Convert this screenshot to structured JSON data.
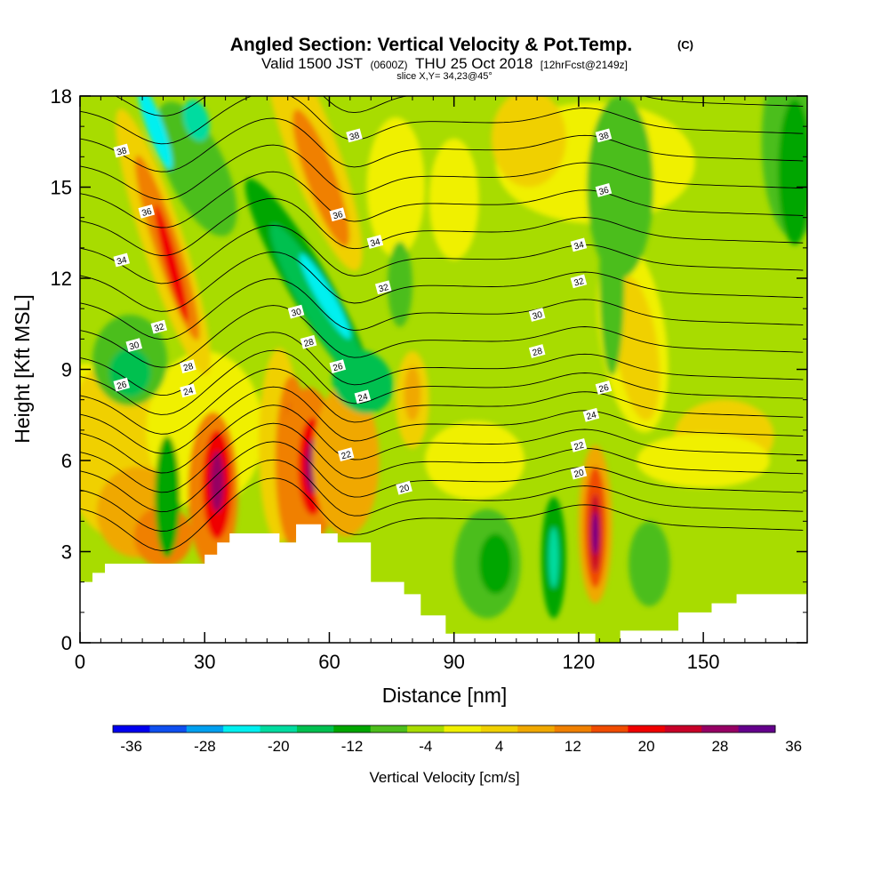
{
  "title": "Angled Section: Vertical Velocity & Pot.Temp.",
  "title_mark": "(C)",
  "subtitle_main": "Valid 1500 JST",
  "subtitle_z": "(0600Z)",
  "subtitle_date": "THU 25 Oct 2018",
  "subtitle_fcst": "[12hrFcst@2149z]",
  "slice": "slice X,Y= 34,23@45°",
  "chart_data": {
    "type": "heatmap",
    "xlabel": "Distance [nm]",
    "ylabel": "Height [Kft MSL]",
    "xlim": [
      0,
      175
    ],
    "ylim": [
      0,
      18
    ],
    "x_ticks": [
      "0",
      "30",
      "60",
      "90",
      "120",
      "150"
    ],
    "y_ticks": [
      "0",
      "3",
      "6",
      "9",
      "12",
      "15",
      "18"
    ],
    "colorbar": {
      "label": "Vertical Velocity [cm/s]",
      "tick_labels": [
        "-36",
        "-28",
        "-20",
        "-12",
        "-4",
        "4",
        "12",
        "20",
        "28",
        "36"
      ],
      "colors": [
        "#0000f0",
        "#0f4ff0",
        "#00a0f0",
        "#00f0f0",
        "#00dca0",
        "#00c050",
        "#00a600",
        "#4cbe1c",
        "#a8dc00",
        "#f0f000",
        "#f0d000",
        "#f0a800",
        "#f08000",
        "#f04c00",
        "#f00000",
        "#c80028",
        "#960064",
        "#64008c"
      ]
    },
    "contour_labels": [
      {
        "x": 10,
        "y": 16.2,
        "v": "38"
      },
      {
        "x": 16,
        "y": 14.2,
        "v": "36"
      },
      {
        "x": 10,
        "y": 12.6,
        "v": "34"
      },
      {
        "x": 19,
        "y": 10.4,
        "v": "32"
      },
      {
        "x": 13,
        "y": 9.8,
        "v": "30"
      },
      {
        "x": 26,
        "y": 9.1,
        "v": "28"
      },
      {
        "x": 10,
        "y": 8.5,
        "v": "26"
      },
      {
        "x": 26,
        "y": 8.3,
        "v": "24"
      },
      {
        "x": 66,
        "y": 16.7,
        "v": "38"
      },
      {
        "x": 62,
        "y": 14.1,
        "v": "36"
      },
      {
        "x": 71,
        "y": 13.2,
        "v": "34"
      },
      {
        "x": 73,
        "y": 11.7,
        "v": "32"
      },
      {
        "x": 52,
        "y": 10.9,
        "v": "30"
      },
      {
        "x": 55,
        "y": 9.9,
        "v": "28"
      },
      {
        "x": 62,
        "y": 9.1,
        "v": "26"
      },
      {
        "x": 68,
        "y": 8.1,
        "v": "24"
      },
      {
        "x": 64,
        "y": 6.2,
        "v": "22"
      },
      {
        "x": 78,
        "y": 5.1,
        "v": "20"
      },
      {
        "x": 126,
        "y": 16.7,
        "v": "38"
      },
      {
        "x": 126,
        "y": 14.9,
        "v": "36"
      },
      {
        "x": 120,
        "y": 13.1,
        "v": "34"
      },
      {
        "x": 120,
        "y": 11.9,
        "v": "32"
      },
      {
        "x": 110,
        "y": 10.8,
        "v": "30"
      },
      {
        "x": 110,
        "y": 9.6,
        "v": "28"
      },
      {
        "x": 126,
        "y": 8.4,
        "v": "26"
      },
      {
        "x": 123,
        "y": 7.5,
        "v": "24"
      },
      {
        "x": 120,
        "y": 6.5,
        "v": "22"
      },
      {
        "x": 120,
        "y": 5.6,
        "v": "20"
      }
    ],
    "terrain_top_kft": [
      [
        0,
        2.0
      ],
      [
        3,
        2.3
      ],
      [
        6,
        2.6
      ],
      [
        30,
        2.9
      ],
      [
        33,
        3.3
      ],
      [
        36,
        3.6
      ],
      [
        48,
        3.3
      ],
      [
        52,
        3.9
      ],
      [
        58,
        3.6
      ],
      [
        62,
        3.3
      ],
      [
        70,
        2.0
      ],
      [
        78,
        1.6
      ],
      [
        82,
        0.9
      ],
      [
        88,
        0.3
      ],
      [
        116,
        0.3
      ],
      [
        124,
        0.0
      ],
      [
        130,
        0.0
      ],
      [
        130,
        0.4
      ],
      [
        142,
        0.4
      ],
      [
        144,
        1.0
      ],
      [
        152,
        1.3
      ],
      [
        158,
        1.6
      ],
      [
        164,
        1.6
      ],
      [
        175,
        1.6
      ]
    ]
  }
}
